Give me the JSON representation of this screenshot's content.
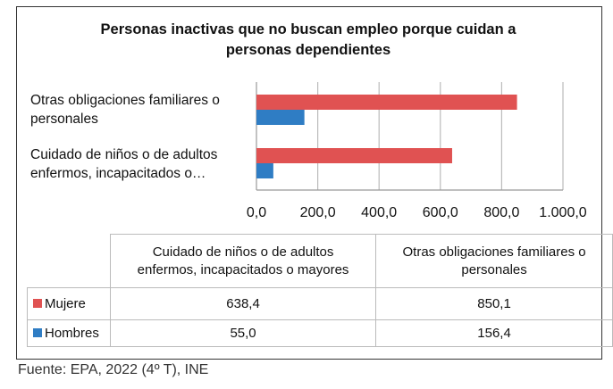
{
  "chart_data": {
    "type": "bar",
    "orientation": "horizontal",
    "title": "Personas inactivas que no buscan empleo porque cuidan a personas dependientes",
    "categories": [
      "Cuidado de niños o de adultos enfermos, incapacitados o mayores",
      "Otras obligaciones familiares o personales"
    ],
    "axis_category_labels": [
      "Cuidado de niños o de adultos enfermos, incapacitados o…",
      "Otras obligaciones familiares o personales"
    ],
    "series": [
      {
        "name": "Mujere",
        "color": "#e05252",
        "values": [
          638.4,
          850.1
        ],
        "labels": [
          "638,4",
          "850,1"
        ]
      },
      {
        "name": "Hombres",
        "color": "#2f7dc4",
        "values": [
          55.0,
          156.4
        ],
        "labels": [
          "55,0",
          "156,4"
        ]
      }
    ],
    "xlim": [
      0,
      1000
    ],
    "xticks": [
      "0,0",
      "200,0",
      "400,0",
      "600,0",
      "800,0",
      "1.000,0"
    ],
    "grid": true,
    "legend": "data-table"
  },
  "source": "Fuente: EPA, 2022 (4º T), INE"
}
